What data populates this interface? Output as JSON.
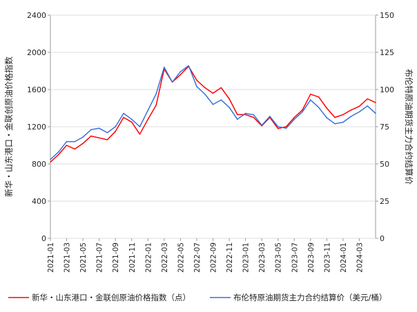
{
  "chart_data": {
    "type": "line",
    "y_left": {
      "label": "新华・山东港口・金联创原油价格指数",
      "min": 0,
      "max": 2400,
      "ticks": [
        0,
        400,
        800,
        1200,
        1600,
        2000,
        2400
      ]
    },
    "y_right": {
      "label": "布伦特原油期货主力合约结算价",
      "min": 0,
      "max": 150,
      "ticks": [
        0,
        25,
        50,
        75,
        100,
        125,
        150
      ]
    },
    "x": {
      "start": "2021-01",
      "end": "2024-05",
      "tick_labels": [
        "2021-01",
        "2021-03",
        "2021-05",
        "2021-07",
        "2021-09",
        "2021-11",
        "2022-01",
        "2022-03",
        "2022-05",
        "2022-07",
        "2022-09",
        "2022-11",
        "2023-01",
        "2023-03",
        "2023-05",
        "2023-07",
        "2023-09",
        "2023-11",
        "2024-01",
        "2024-03"
      ]
    },
    "series": [
      {
        "name": "新华・山东港口・金联创原油价格指数（点）",
        "color": "#ff0000",
        "axis": "left",
        "points": [
          [
            "2021-01",
            820
          ],
          [
            "2021-02",
            900
          ],
          [
            "2021-03",
            1000
          ],
          [
            "2021-04",
            960
          ],
          [
            "2021-05",
            1020
          ],
          [
            "2021-06",
            1100
          ],
          [
            "2021-07",
            1080
          ],
          [
            "2021-08",
            1060
          ],
          [
            "2021-09",
            1150
          ],
          [
            "2021-10",
            1300
          ],
          [
            "2021-11",
            1250
          ],
          [
            "2021-12",
            1120
          ],
          [
            "2022-01",
            1280
          ],
          [
            "2022-02",
            1430
          ],
          [
            "2022-03",
            1820
          ],
          [
            "2022-04",
            1680
          ],
          [
            "2022-05",
            1760
          ],
          [
            "2022-06",
            1850
          ],
          [
            "2022-07",
            1700
          ],
          [
            "2022-08",
            1620
          ],
          [
            "2022-09",
            1560
          ],
          [
            "2022-10",
            1620
          ],
          [
            "2022-11",
            1500
          ],
          [
            "2022-12",
            1330
          ],
          [
            "2023-01",
            1330
          ],
          [
            "2023-02",
            1300
          ],
          [
            "2023-03",
            1210
          ],
          [
            "2023-04",
            1300
          ],
          [
            "2023-05",
            1180
          ],
          [
            "2023-06",
            1200
          ],
          [
            "2023-07",
            1300
          ],
          [
            "2023-08",
            1380
          ],
          [
            "2023-09",
            1550
          ],
          [
            "2023-10",
            1520
          ],
          [
            "2023-11",
            1400
          ],
          [
            "2023-12",
            1300
          ],
          [
            "2024-01",
            1330
          ],
          [
            "2024-02",
            1380
          ],
          [
            "2024-03",
            1420
          ],
          [
            "2024-04",
            1500
          ],
          [
            "2024-05",
            1460
          ]
        ]
      },
      {
        "name": "布伦特原油期货主力合约结算价（美元/桶）",
        "color": "#3a6fd8",
        "axis": "right",
        "points": [
          [
            "2021-01",
            53
          ],
          [
            "2021-02",
            58
          ],
          [
            "2021-03",
            65
          ],
          [
            "2021-04",
            65
          ],
          [
            "2021-05",
            68
          ],
          [
            "2021-06",
            73
          ],
          [
            "2021-07",
            74
          ],
          [
            "2021-08",
            71
          ],
          [
            "2021-09",
            75
          ],
          [
            "2021-10",
            84
          ],
          [
            "2021-11",
            80
          ],
          [
            "2021-12",
            75
          ],
          [
            "2022-01",
            86
          ],
          [
            "2022-02",
            97
          ],
          [
            "2022-03",
            115
          ],
          [
            "2022-04",
            105
          ],
          [
            "2022-05",
            112
          ],
          [
            "2022-06",
            116
          ],
          [
            "2022-07",
            102
          ],
          [
            "2022-08",
            97
          ],
          [
            "2022-09",
            90
          ],
          [
            "2022-10",
            93
          ],
          [
            "2022-11",
            88
          ],
          [
            "2022-12",
            80
          ],
          [
            "2023-01",
            84
          ],
          [
            "2023-02",
            83
          ],
          [
            "2023-03",
            76
          ],
          [
            "2023-04",
            82
          ],
          [
            "2023-05",
            75
          ],
          [
            "2023-06",
            74
          ],
          [
            "2023-07",
            80
          ],
          [
            "2023-08",
            85
          ],
          [
            "2023-09",
            93
          ],
          [
            "2023-10",
            88
          ],
          [
            "2023-11",
            81
          ],
          [
            "2023-12",
            77
          ],
          [
            "2024-01",
            78
          ],
          [
            "2024-02",
            82
          ],
          [
            "2024-03",
            85
          ],
          [
            "2024-04",
            89
          ],
          [
            "2024-05",
            84
          ]
        ]
      }
    ],
    "legend_position": "bottom",
    "grid": true
  }
}
